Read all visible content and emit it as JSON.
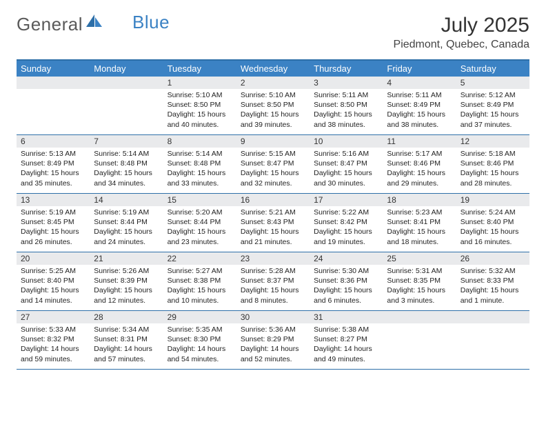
{
  "logo": {
    "text_general": "General",
    "text_blue": "Blue"
  },
  "title": "July 2025",
  "location": "Piedmont, Quebec, Canada",
  "colors": {
    "header_bg": "#3b82c4",
    "header_border": "#2d6fa8",
    "daynum_bg": "#e9eaec",
    "text": "#222222",
    "logo_gray": "#5a5a5a"
  },
  "day_headers": [
    "Sunday",
    "Monday",
    "Tuesday",
    "Wednesday",
    "Thursday",
    "Friday",
    "Saturday"
  ],
  "weeks": [
    [
      {
        "n": "",
        "sunrise": "",
        "sunset": "",
        "daylight": ""
      },
      {
        "n": "",
        "sunrise": "",
        "sunset": "",
        "daylight": ""
      },
      {
        "n": "1",
        "sunrise": "Sunrise: 5:10 AM",
        "sunset": "Sunset: 8:50 PM",
        "daylight": "Daylight: 15 hours and 40 minutes."
      },
      {
        "n": "2",
        "sunrise": "Sunrise: 5:10 AM",
        "sunset": "Sunset: 8:50 PM",
        "daylight": "Daylight: 15 hours and 39 minutes."
      },
      {
        "n": "3",
        "sunrise": "Sunrise: 5:11 AM",
        "sunset": "Sunset: 8:50 PM",
        "daylight": "Daylight: 15 hours and 38 minutes."
      },
      {
        "n": "4",
        "sunrise": "Sunrise: 5:11 AM",
        "sunset": "Sunset: 8:49 PM",
        "daylight": "Daylight: 15 hours and 38 minutes."
      },
      {
        "n": "5",
        "sunrise": "Sunrise: 5:12 AM",
        "sunset": "Sunset: 8:49 PM",
        "daylight": "Daylight: 15 hours and 37 minutes."
      }
    ],
    [
      {
        "n": "6",
        "sunrise": "Sunrise: 5:13 AM",
        "sunset": "Sunset: 8:49 PM",
        "daylight": "Daylight: 15 hours and 35 minutes."
      },
      {
        "n": "7",
        "sunrise": "Sunrise: 5:14 AM",
        "sunset": "Sunset: 8:48 PM",
        "daylight": "Daylight: 15 hours and 34 minutes."
      },
      {
        "n": "8",
        "sunrise": "Sunrise: 5:14 AM",
        "sunset": "Sunset: 8:48 PM",
        "daylight": "Daylight: 15 hours and 33 minutes."
      },
      {
        "n": "9",
        "sunrise": "Sunrise: 5:15 AM",
        "sunset": "Sunset: 8:47 PM",
        "daylight": "Daylight: 15 hours and 32 minutes."
      },
      {
        "n": "10",
        "sunrise": "Sunrise: 5:16 AM",
        "sunset": "Sunset: 8:47 PM",
        "daylight": "Daylight: 15 hours and 30 minutes."
      },
      {
        "n": "11",
        "sunrise": "Sunrise: 5:17 AM",
        "sunset": "Sunset: 8:46 PM",
        "daylight": "Daylight: 15 hours and 29 minutes."
      },
      {
        "n": "12",
        "sunrise": "Sunrise: 5:18 AM",
        "sunset": "Sunset: 8:46 PM",
        "daylight": "Daylight: 15 hours and 28 minutes."
      }
    ],
    [
      {
        "n": "13",
        "sunrise": "Sunrise: 5:19 AM",
        "sunset": "Sunset: 8:45 PM",
        "daylight": "Daylight: 15 hours and 26 minutes."
      },
      {
        "n": "14",
        "sunrise": "Sunrise: 5:19 AM",
        "sunset": "Sunset: 8:44 PM",
        "daylight": "Daylight: 15 hours and 24 minutes."
      },
      {
        "n": "15",
        "sunrise": "Sunrise: 5:20 AM",
        "sunset": "Sunset: 8:44 PM",
        "daylight": "Daylight: 15 hours and 23 minutes."
      },
      {
        "n": "16",
        "sunrise": "Sunrise: 5:21 AM",
        "sunset": "Sunset: 8:43 PM",
        "daylight": "Daylight: 15 hours and 21 minutes."
      },
      {
        "n": "17",
        "sunrise": "Sunrise: 5:22 AM",
        "sunset": "Sunset: 8:42 PM",
        "daylight": "Daylight: 15 hours and 19 minutes."
      },
      {
        "n": "18",
        "sunrise": "Sunrise: 5:23 AM",
        "sunset": "Sunset: 8:41 PM",
        "daylight": "Daylight: 15 hours and 18 minutes."
      },
      {
        "n": "19",
        "sunrise": "Sunrise: 5:24 AM",
        "sunset": "Sunset: 8:40 PM",
        "daylight": "Daylight: 15 hours and 16 minutes."
      }
    ],
    [
      {
        "n": "20",
        "sunrise": "Sunrise: 5:25 AM",
        "sunset": "Sunset: 8:40 PM",
        "daylight": "Daylight: 15 hours and 14 minutes."
      },
      {
        "n": "21",
        "sunrise": "Sunrise: 5:26 AM",
        "sunset": "Sunset: 8:39 PM",
        "daylight": "Daylight: 15 hours and 12 minutes."
      },
      {
        "n": "22",
        "sunrise": "Sunrise: 5:27 AM",
        "sunset": "Sunset: 8:38 PM",
        "daylight": "Daylight: 15 hours and 10 minutes."
      },
      {
        "n": "23",
        "sunrise": "Sunrise: 5:28 AM",
        "sunset": "Sunset: 8:37 PM",
        "daylight": "Daylight: 15 hours and 8 minutes."
      },
      {
        "n": "24",
        "sunrise": "Sunrise: 5:30 AM",
        "sunset": "Sunset: 8:36 PM",
        "daylight": "Daylight: 15 hours and 6 minutes."
      },
      {
        "n": "25",
        "sunrise": "Sunrise: 5:31 AM",
        "sunset": "Sunset: 8:35 PM",
        "daylight": "Daylight: 15 hours and 3 minutes."
      },
      {
        "n": "26",
        "sunrise": "Sunrise: 5:32 AM",
        "sunset": "Sunset: 8:33 PM",
        "daylight": "Daylight: 15 hours and 1 minute."
      }
    ],
    [
      {
        "n": "27",
        "sunrise": "Sunrise: 5:33 AM",
        "sunset": "Sunset: 8:32 PM",
        "daylight": "Daylight: 14 hours and 59 minutes."
      },
      {
        "n": "28",
        "sunrise": "Sunrise: 5:34 AM",
        "sunset": "Sunset: 8:31 PM",
        "daylight": "Daylight: 14 hours and 57 minutes."
      },
      {
        "n": "29",
        "sunrise": "Sunrise: 5:35 AM",
        "sunset": "Sunset: 8:30 PM",
        "daylight": "Daylight: 14 hours and 54 minutes."
      },
      {
        "n": "30",
        "sunrise": "Sunrise: 5:36 AM",
        "sunset": "Sunset: 8:29 PM",
        "daylight": "Daylight: 14 hours and 52 minutes."
      },
      {
        "n": "31",
        "sunrise": "Sunrise: 5:38 AM",
        "sunset": "Sunset: 8:27 PM",
        "daylight": "Daylight: 14 hours and 49 minutes."
      },
      {
        "n": "",
        "sunrise": "",
        "sunset": "",
        "daylight": ""
      },
      {
        "n": "",
        "sunrise": "",
        "sunset": "",
        "daylight": ""
      }
    ]
  ]
}
